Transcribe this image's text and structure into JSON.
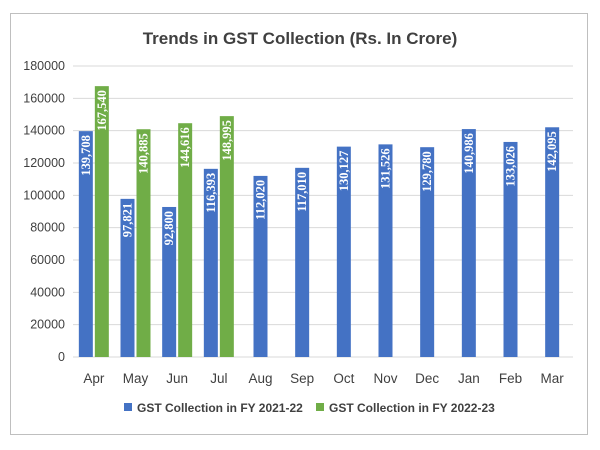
{
  "chart_data": {
    "type": "bar",
    "title": "Trends in GST Collection (Rs. In Crore)",
    "xlabel": "",
    "ylabel": "",
    "ylim": [
      0,
      180000
    ],
    "yticks": [
      0,
      20000,
      40000,
      60000,
      80000,
      100000,
      120000,
      140000,
      160000,
      180000
    ],
    "grid": true,
    "legend_position": "bottom",
    "categories": [
      "Apr",
      "May",
      "Jun",
      "Jul",
      "Aug",
      "Sep",
      "Oct",
      "Nov",
      "Dec",
      "Jan",
      "Feb",
      "Mar"
    ],
    "series": [
      {
        "name": "GST Collection in FY 2021-22",
        "color": "#4472c4",
        "values": [
          139708,
          97821,
          92800,
          116393,
          112020,
          117010,
          130127,
          131526,
          129780,
          140986,
          133026,
          142095
        ],
        "labels": [
          "139,708",
          "97,821",
          "92,800",
          "116,393",
          "112,020",
          "117,010",
          "130,127",
          "131,526",
          "129,780",
          "140,986",
          "133,026",
          "142,095"
        ]
      },
      {
        "name": "GST Collection in FY 2022-23",
        "color": "#70ad47",
        "values": [
          167540,
          140885,
          144616,
          148995,
          null,
          null,
          null,
          null,
          null,
          null,
          null,
          null
        ],
        "labels": [
          "167,540",
          "140,885",
          "144,616",
          "148,995",
          null,
          null,
          null,
          null,
          null,
          null,
          null,
          null
        ]
      }
    ]
  }
}
